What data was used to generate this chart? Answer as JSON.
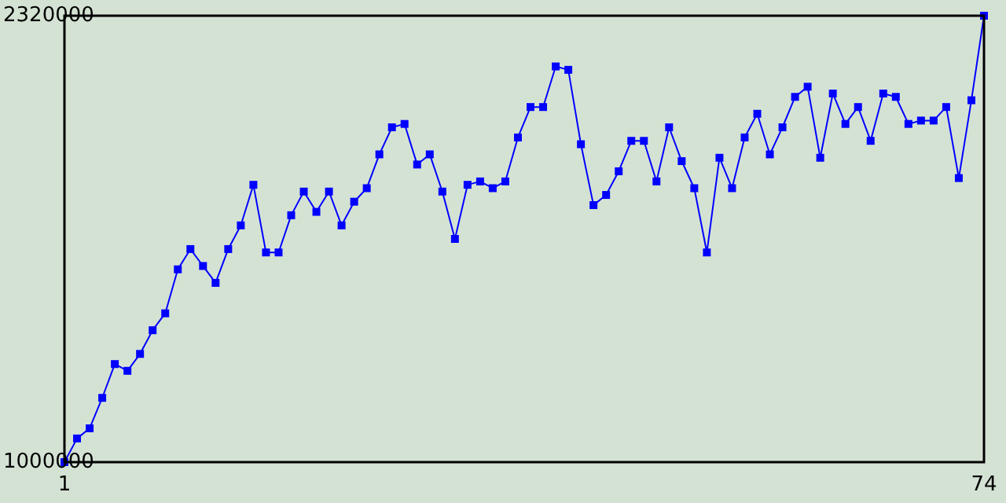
{
  "chart_data": {
    "type": "line",
    "x": [
      1,
      2,
      3,
      4,
      5,
      6,
      7,
      8,
      9,
      10,
      11,
      12,
      13,
      14,
      15,
      16,
      17,
      18,
      19,
      20,
      21,
      22,
      23,
      24,
      25,
      26,
      27,
      28,
      29,
      30,
      31,
      32,
      33,
      34,
      35,
      36,
      37,
      38,
      39,
      40,
      41,
      42,
      43,
      44,
      45,
      46,
      47,
      48,
      49,
      50,
      51,
      52,
      53,
      54,
      55,
      56,
      57,
      58,
      59,
      60,
      61,
      62,
      63,
      64,
      65,
      66,
      67,
      68,
      69,
      70,
      71,
      72,
      73,
      74
    ],
    "series": [
      {
        "color": "#0000ff",
        "values": [
          1000000,
          1070000,
          1100000,
          1190000,
          1290000,
          1270000,
          1320000,
          1390000,
          1440000,
          1570000,
          1630000,
          1580000,
          1530000,
          1630000,
          1700000,
          1820000,
          1620000,
          1620000,
          1730000,
          1800000,
          1740000,
          1800000,
          1700000,
          1770000,
          1810000,
          1910000,
          1990000,
          2000000,
          1880000,
          1910000,
          1800000,
          1660000,
          1820000,
          1830000,
          1810000,
          1830000,
          1960000,
          2050000,
          2050000,
          2170000,
          2160000,
          1940000,
          1760000,
          1790000,
          1860000,
          1950000,
          1950000,
          1830000,
          1990000,
          1890000,
          1810000,
          1620000,
          1900000,
          1810000,
          1960000,
          2030000,
          1910000,
          1990000,
          2080000,
          2110000,
          1900000,
          2090000,
          2000000,
          2050000,
          1950000,
          2090000,
          2080000,
          2000000,
          2010000,
          2010000,
          2050000,
          1840000,
          2070000,
          2320000
        ]
      }
    ],
    "xlim": [
      1,
      74
    ],
    "xticks": [
      1,
      74
    ],
    "ylim": [
      1000000,
      2320000
    ],
    "yticks": [
      1000000,
      2320000
    ],
    "marker": "square",
    "line_style": "solid"
  }
}
